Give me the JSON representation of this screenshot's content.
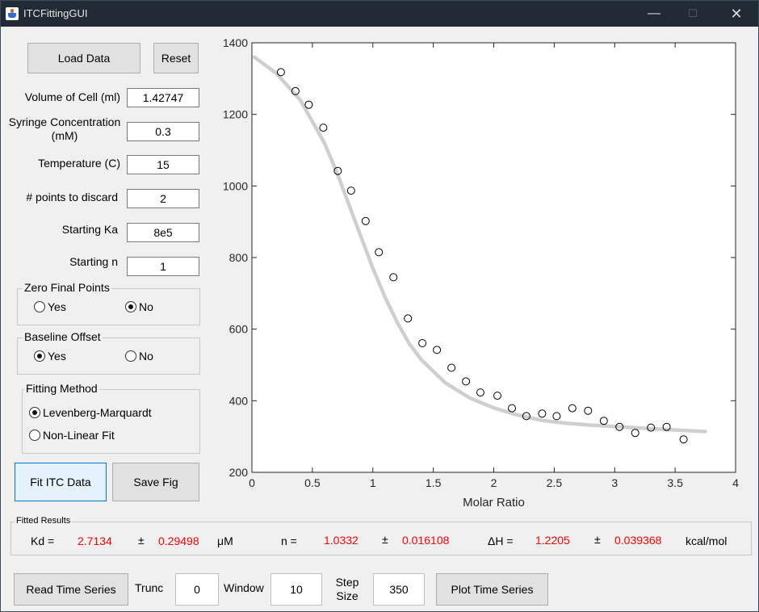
{
  "window": {
    "title": "ITCFittingGUI"
  },
  "buttons": {
    "load": "Load Data",
    "reset": "Reset",
    "fit": "Fit ITC Data",
    "save": "Save Fig",
    "read_ts": "Read Time Series",
    "plot_ts": "Plot Time Series"
  },
  "params": {
    "volume_label": "Volume of Cell (ml)",
    "volume_value": "1.42747",
    "syringe_label": "Syringe Concentration (mM)",
    "syringe_value": "0.3",
    "temp_label": "Temperature (C)",
    "temp_value": "15",
    "discard_label": "# points to discard",
    "discard_value": "2",
    "ka_label": "Starting Ka",
    "ka_value": "8e5",
    "n_label": "Starting n",
    "n_value": "1"
  },
  "zero_final": {
    "title": "Zero Final Points",
    "yes": "Yes",
    "no": "No",
    "selected": "no"
  },
  "baseline": {
    "title": "Baseline Offset",
    "yes": "Yes",
    "no": "No",
    "selected": "yes"
  },
  "fitting": {
    "title": "Fitting Method",
    "lm": "Levenberg-Marquardt",
    "nl": "Non-Linear Fit",
    "selected": "lm"
  },
  "results": {
    "title": "Fitted Results",
    "kd_label": "Kd =",
    "kd_value": "2.7134",
    "pm1": "±",
    "kd_err": "0.29498",
    "kd_unit": "μM",
    "n_label": "n =",
    "n_value": "1.0332",
    "pm2": "±",
    "n_err": "0.016108",
    "dh_label": "ΔH =",
    "dh_value": "1.2205",
    "pm3": "±",
    "dh_err": "0.039368",
    "dh_unit": "kcal/mol"
  },
  "timeseries": {
    "trunc_label": "Trunc",
    "trunc_value": "0",
    "window_label": "Window",
    "window_value": "10",
    "step_label": "Step Size",
    "step_value": "350"
  },
  "chart_data": {
    "type": "scatter",
    "xlabel": "Molar Ratio",
    "ylabel": "",
    "xlim": [
      0,
      4
    ],
    "ylim": [
      200,
      1400
    ],
    "xticks": [
      "0",
      "0.5",
      "1",
      "1.5",
      "2",
      "2.5",
      "3",
      "3.5",
      "4"
    ],
    "yticks": [
      "200",
      "400",
      "600",
      "800",
      "1000",
      "1200",
      "1400"
    ],
    "grid": false,
    "series": [
      {
        "kind": "points",
        "x": [
          0.24,
          0.36,
          0.47,
          0.59,
          0.71,
          0.82,
          0.94,
          1.05,
          1.17,
          1.29,
          1.41,
          1.53,
          1.65,
          1.77,
          1.89,
          2.03,
          2.15,
          2.27,
          2.4,
          2.52,
          2.65,
          2.78,
          2.91,
          3.04,
          3.17,
          3.3,
          3.43,
          3.57
        ],
        "y": [
          1318,
          1265,
          1227,
          1163,
          1042,
          987,
          902,
          815,
          745,
          630,
          561,
          542,
          492,
          454,
          423,
          414,
          379,
          357,
          364,
          357,
          379,
          372,
          344,
          327,
          310,
          325,
          327,
          292
        ]
      },
      {
        "kind": "fit",
        "color": "#cfcfcf",
        "x": [
          0.02,
          0.2,
          0.4,
          0.6,
          0.7,
          0.8,
          0.9,
          1.0,
          1.1,
          1.2,
          1.3,
          1.4,
          1.6,
          1.8,
          2.0,
          2.2,
          2.4,
          2.6,
          2.8,
          3.0,
          3.2,
          3.4,
          3.75
        ],
        "y": [
          1360,
          1315,
          1240,
          1120,
          1040,
          950,
          860,
          770,
          690,
          620,
          560,
          515,
          450,
          408,
          380,
          360,
          345,
          337,
          332,
          328,
          324,
          320,
          314
        ]
      }
    ]
  }
}
